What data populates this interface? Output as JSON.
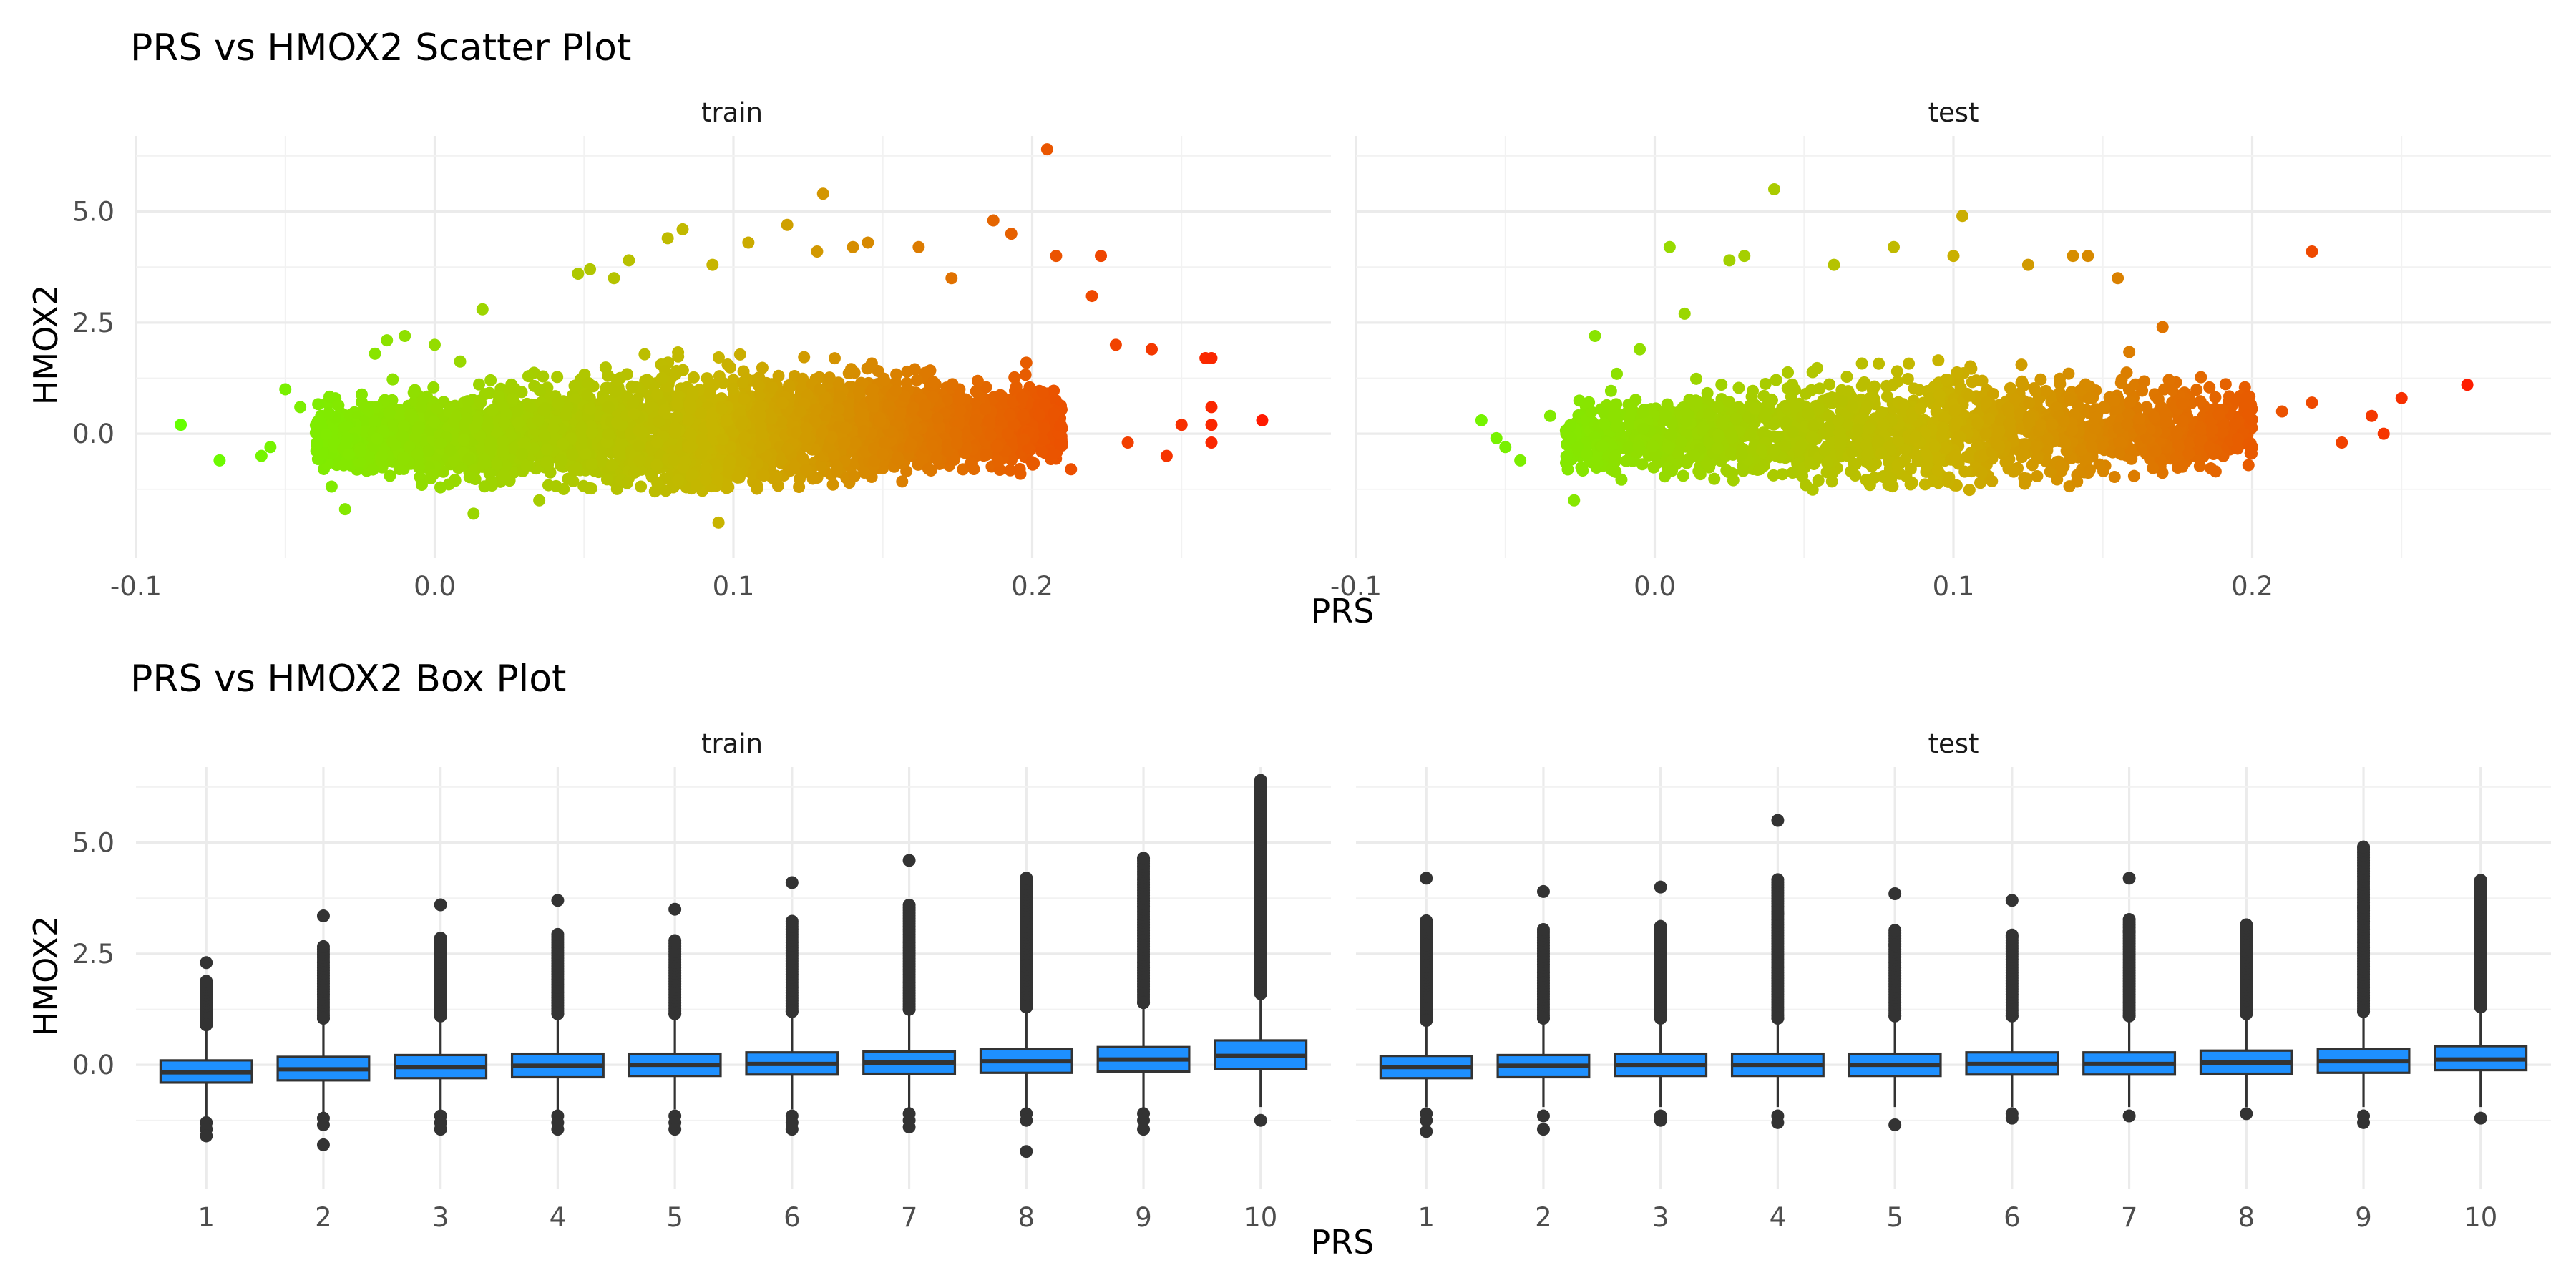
{
  "chart_data": [
    {
      "type": "scatter",
      "title": "PRS vs HMOX2 Scatter Plot",
      "xlabel": "PRS",
      "ylabel": "HMOX2",
      "facets": [
        "train",
        "test"
      ],
      "xlim": [
        -0.1,
        0.3
      ],
      "ylim": [
        -2.8,
        6.7
      ],
      "x_ticks": [
        -0.1,
        0.0,
        0.1,
        0.2
      ],
      "x_tick_labels": [
        "-0.1",
        "0.0",
        "0.1",
        "0.2"
      ],
      "y_ticks": [
        0.0,
        2.5,
        5.0
      ],
      "y_tick_labels": [
        "0.0",
        "2.5",
        "5.0"
      ],
      "grid": true,
      "color_scale": {
        "low": "#66ff00",
        "mid": "#c8b400",
        "high": "#ff1a00",
        "by": "PRS"
      },
      "series": [
        {
          "facet": "train",
          "n_bulk": 4200,
          "bulk_x_range": [
            -0.04,
            0.21
          ],
          "points": [
            [
              -0.085,
              0.2
            ],
            [
              -0.072,
              -0.6
            ],
            [
              -0.058,
              -0.5
            ],
            [
              -0.055,
              -0.3
            ],
            [
              -0.05,
              1.0
            ],
            [
              -0.045,
              0.6
            ],
            [
              -0.03,
              -1.7
            ],
            [
              -0.02,
              1.8
            ],
            [
              -0.016,
              2.1
            ],
            [
              -0.01,
              2.2
            ],
            [
              0.0,
              2.0
            ],
            [
              0.013,
              -1.8
            ],
            [
              0.016,
              2.8
            ],
            [
              0.035,
              -1.5
            ],
            [
              0.048,
              3.6
            ],
            [
              0.052,
              3.7
            ],
            [
              0.06,
              3.5
            ],
            [
              0.065,
              3.9
            ],
            [
              0.078,
              4.4
            ],
            [
              0.083,
              4.6
            ],
            [
              0.093,
              3.8
            ],
            [
              0.095,
              -2.0
            ],
            [
              0.105,
              4.3
            ],
            [
              0.118,
              4.7
            ],
            [
              0.128,
              4.1
            ],
            [
              0.13,
              5.4
            ],
            [
              0.14,
              4.2
            ],
            [
              0.145,
              4.3
            ],
            [
              0.162,
              4.2
            ],
            [
              0.173,
              3.5
            ],
            [
              0.187,
              4.8
            ],
            [
              0.193,
              4.5
            ],
            [
              0.205,
              6.4
            ],
            [
              0.208,
              4.0
            ],
            [
              0.213,
              -0.8
            ],
            [
              0.22,
              3.1
            ],
            [
              0.223,
              4.0
            ],
            [
              0.228,
              2.0
            ],
            [
              0.232,
              -0.2
            ],
            [
              0.24,
              1.9
            ],
            [
              0.245,
              -0.5
            ],
            [
              0.25,
              0.2
            ],
            [
              0.258,
              1.7
            ],
            [
              0.26,
              1.7
            ],
            [
              0.26,
              0.6
            ],
            [
              0.26,
              -0.2
            ],
            [
              0.26,
              0.2
            ],
            [
              0.277,
              0.3
            ]
          ]
        },
        {
          "facet": "test",
          "n_bulk": 1800,
          "bulk_x_range": [
            -0.03,
            0.2
          ],
          "points": [
            [
              -0.058,
              0.3
            ],
            [
              -0.053,
              -0.1
            ],
            [
              -0.05,
              -0.3
            ],
            [
              -0.045,
              -0.6
            ],
            [
              -0.035,
              0.4
            ],
            [
              -0.027,
              -1.5
            ],
            [
              -0.02,
              2.2
            ],
            [
              -0.005,
              1.9
            ],
            [
              0.005,
              4.2
            ],
            [
              0.01,
              2.7
            ],
            [
              0.025,
              3.9
            ],
            [
              0.03,
              4.0
            ],
            [
              0.04,
              5.5
            ],
            [
              0.06,
              3.8
            ],
            [
              0.08,
              4.2
            ],
            [
              0.1,
              4.0
            ],
            [
              0.103,
              4.9
            ],
            [
              0.125,
              3.8
            ],
            [
              0.14,
              4.0
            ],
            [
              0.145,
              4.0
            ],
            [
              0.155,
              3.5
            ],
            [
              0.17,
              2.4
            ],
            [
              0.2,
              -0.3
            ],
            [
              0.21,
              0.5
            ],
            [
              0.22,
              4.1
            ],
            [
              0.22,
              0.7
            ],
            [
              0.23,
              -0.2
            ],
            [
              0.24,
              0.4
            ],
            [
              0.244,
              0.0
            ],
            [
              0.25,
              0.8
            ],
            [
              0.272,
              1.1
            ]
          ]
        }
      ]
    },
    {
      "type": "box",
      "title": "PRS vs HMOX2 Box Plot",
      "xlabel": "PRS",
      "ylabel": "HMOX2",
      "facets": [
        "train",
        "test"
      ],
      "categories": [
        "1",
        "2",
        "3",
        "4",
        "5",
        "6",
        "7",
        "8",
        "9",
        "10"
      ],
      "ylim": [
        -2.8,
        6.7
      ],
      "y_ticks": [
        0.0,
        2.5,
        5.0
      ],
      "y_tick_labels": [
        "0.0",
        "2.5",
        "5.0"
      ],
      "grid": true,
      "box_color": "#1e90ff",
      "series": [
        {
          "facet": "train",
          "boxes": [
            {
              "q1": -0.4,
              "median": -0.17,
              "q3": 0.1,
              "whisker_low": -1.15,
              "whisker_high": 0.82,
              "outliers_low": [
                -1.3,
                -1.45,
                -1.6
              ],
              "outliers_high": [
                0.9,
                2.3
              ]
            },
            {
              "q1": -0.35,
              "median": -0.1,
              "q3": 0.18,
              "whisker_low": -1.1,
              "whisker_high": 0.95,
              "outliers_low": [
                -1.2,
                -1.35,
                -1.8
              ],
              "outliers_high": [
                1.05,
                3.35
              ]
            },
            {
              "q1": -0.3,
              "median": -0.05,
              "q3": 0.22,
              "whisker_low": -1.05,
              "whisker_high": 1.0,
              "outliers_low": [
                -1.15,
                -1.3,
                -1.45
              ],
              "outliers_high": [
                1.1,
                3.6
              ]
            },
            {
              "q1": -0.28,
              "median": -0.02,
              "q3": 0.25,
              "whisker_low": -1.05,
              "whisker_high": 1.05,
              "outliers_low": [
                -1.15,
                -1.3,
                -1.45
              ],
              "outliers_high": [
                1.15,
                3.7
              ]
            },
            {
              "q1": -0.25,
              "median": 0.0,
              "q3": 0.25,
              "whisker_low": -1.0,
              "whisker_high": 1.05,
              "outliers_low": [
                -1.15,
                -1.3,
                -1.45
              ],
              "outliers_high": [
                1.15,
                3.5
              ]
            },
            {
              "q1": -0.22,
              "median": 0.02,
              "q3": 0.28,
              "whisker_low": -1.0,
              "whisker_high": 1.1,
              "outliers_low": [
                -1.15,
                -1.3,
                -1.45
              ],
              "outliers_high": [
                1.2,
                4.1
              ]
            },
            {
              "q1": -0.2,
              "median": 0.05,
              "q3": 0.3,
              "whisker_low": -1.0,
              "whisker_high": 1.15,
              "outliers_low": [
                -1.1,
                -1.25,
                -1.4
              ],
              "outliers_high": [
                1.25,
                4.6
              ]
            },
            {
              "q1": -0.18,
              "median": 0.08,
              "q3": 0.35,
              "whisker_low": -1.0,
              "whisker_high": 1.2,
              "outliers_low": [
                -1.1,
                -1.25,
                -1.95
              ],
              "outliers_high": [
                1.3,
                4.2
              ]
            },
            {
              "q1": -0.15,
              "median": 0.12,
              "q3": 0.4,
              "whisker_low": -1.0,
              "whisker_high": 1.3,
              "outliers_low": [
                -1.1,
                -1.25,
                -1.45
              ],
              "outliers_high": [
                1.4,
                4.65
              ]
            },
            {
              "q1": -0.1,
              "median": 0.2,
              "q3": 0.55,
              "whisker_low": -0.95,
              "whisker_high": 1.5,
              "outliers_low": [
                -1.25
              ],
              "outliers_high": [
                1.6,
                6.4
              ]
            }
          ]
        },
        {
          "facet": "test",
          "boxes": [
            {
              "q1": -0.3,
              "median": -0.05,
              "q3": 0.2,
              "whisker_low": -0.95,
              "whisker_high": 0.9,
              "outliers_low": [
                -1.1,
                -1.25,
                -1.5
              ],
              "outliers_high": [
                1.0,
                2.7,
                4.2
              ]
            },
            {
              "q1": -0.28,
              "median": -0.02,
              "q3": 0.22,
              "whisker_low": -0.95,
              "whisker_high": 0.95,
              "outliers_low": [
                -1.15,
                -1.45
              ],
              "outliers_high": [
                1.05,
                3.9
              ]
            },
            {
              "q1": -0.25,
              "median": 0.0,
              "q3": 0.25,
              "whisker_low": -0.95,
              "whisker_high": 0.95,
              "outliers_low": [
                -1.15,
                -1.25
              ],
              "outliers_high": [
                1.05,
                2.9,
                4.0
              ]
            },
            {
              "q1": -0.25,
              "median": 0.0,
              "q3": 0.25,
              "whisker_low": -0.95,
              "whisker_high": 0.95,
              "outliers_low": [
                -1.15,
                -1.3
              ],
              "outliers_high": [
                1.05,
                3.4,
                5.5
              ]
            },
            {
              "q1": -0.25,
              "median": 0.0,
              "q3": 0.25,
              "whisker_low": -0.95,
              "whisker_high": 1.0,
              "outliers_low": [
                -1.35
              ],
              "outliers_high": [
                1.1,
                2.7,
                3.85
              ]
            },
            {
              "q1": -0.22,
              "median": 0.02,
              "q3": 0.28,
              "whisker_low": -0.95,
              "whisker_high": 1.0,
              "outliers_low": [
                -1.1,
                -1.2
              ],
              "outliers_high": [
                1.1,
                2.9,
                3.7
              ]
            },
            {
              "q1": -0.22,
              "median": 0.02,
              "q3": 0.28,
              "whisker_low": -0.95,
              "whisker_high": 1.0,
              "outliers_low": [
                -1.15
              ],
              "outliers_high": [
                1.1,
                3.0,
                4.2
              ]
            },
            {
              "q1": -0.2,
              "median": 0.05,
              "q3": 0.32,
              "whisker_low": -0.95,
              "whisker_high": 1.05,
              "outliers_low": [
                -1.1
              ],
              "outliers_high": [
                1.15,
                3.15
              ]
            },
            {
              "q1": -0.18,
              "median": 0.08,
              "q3": 0.35,
              "whisker_low": -0.95,
              "whisker_high": 1.1,
              "outliers_low": [
                -1.15,
                -1.3
              ],
              "outliers_high": [
                1.2,
                3.55,
                4.9
              ]
            },
            {
              "q1": -0.12,
              "median": 0.12,
              "q3": 0.42,
              "whisker_low": -0.95,
              "whisker_high": 1.2,
              "outliers_low": [
                -1.2
              ],
              "outliers_high": [
                1.3,
                4.15
              ]
            }
          ]
        }
      ]
    }
  ]
}
